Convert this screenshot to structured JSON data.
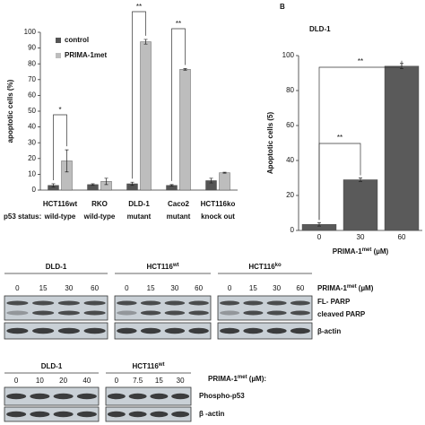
{
  "chart_data": [
    {
      "type": "bar",
      "y_label": "apoptotic cells (%)",
      "categories": [
        "HCT116wt",
        "RKO",
        "DLD-1",
        "Caco2",
        "HCT116ko"
      ],
      "x_sublabel_title": "p53 status:",
      "x_sublabels": [
        "wild-type",
        "wild-type",
        "mutant",
        "mutant",
        "knock out"
      ],
      "series": [
        {
          "name": "control",
          "color": "#555555",
          "values": [
            3,
            3.5,
            4,
            3,
            6
          ],
          "errors": [
            1,
            0.5,
            1,
            0.5,
            1.5
          ]
        },
        {
          "name": "PRIMA-1met",
          "color": "#bdbdbd",
          "values": [
            18.5,
            5.5,
            94,
            76.5,
            11
          ],
          "errors": [
            7,
            2,
            1.5,
            0.5,
            0.3
          ]
        }
      ],
      "ylim": [
        0,
        100
      ],
      "yticks": [
        0,
        10,
        20,
        30,
        40,
        50,
        60,
        70,
        80,
        90,
        100
      ],
      "legend": "upper left",
      "annotations": [
        "*",
        "**",
        "**"
      ]
    },
    {
      "type": "bar",
      "panel": "B",
      "title": "DLD-1",
      "y_label": "Apoptotic cells (5)",
      "x_label": "PRIMA-1",
      "x_label_sup": "met",
      "x_label_unit": "(µM)",
      "categories": [
        "0",
        "30",
        "60"
      ],
      "series": [
        {
          "color": "#5a5a5a",
          "values": [
            3.5,
            29,
            94
          ],
          "errors": [
            1,
            1,
            1.5
          ]
        }
      ],
      "ylim": [
        0,
        100
      ],
      "yticks": [
        0,
        20,
        40,
        60,
        80,
        100
      ],
      "annotations": [
        "**",
        "**"
      ]
    }
  ],
  "blots": [
    {
      "groups": [
        {
          "name": "DLD-1",
          "lanes": [
            "0",
            "15",
            "30",
            "60"
          ]
        },
        {
          "name": "HCT116",
          "name_sup": "wt",
          "lanes": [
            "0",
            "15",
            "30",
            "60"
          ]
        },
        {
          "name": "HCT116",
          "name_sup": "ko",
          "lanes": [
            "0",
            "15",
            "30",
            "60"
          ]
        }
      ],
      "treatment": "PRIMA-1",
      "treatment_sup": "met",
      "treatment_unit": "(µM)",
      "rows": [
        "FL- PARP",
        "cleaved PARP",
        "β-actin"
      ]
    },
    {
      "groups": [
        {
          "name": "DLD-1",
          "lanes": [
            "0",
            "10",
            "20",
            "40"
          ]
        },
        {
          "name": "HCT116",
          "name_sup": "wt",
          "lanes": [
            "0",
            "7.5",
            "15",
            "30"
          ]
        }
      ],
      "treatment": "PRIMA-1",
      "treatment_sup": "met",
      "treatment_unit": "(µM):",
      "rows": [
        "Phospho-p53",
        "β -actin"
      ]
    }
  ]
}
